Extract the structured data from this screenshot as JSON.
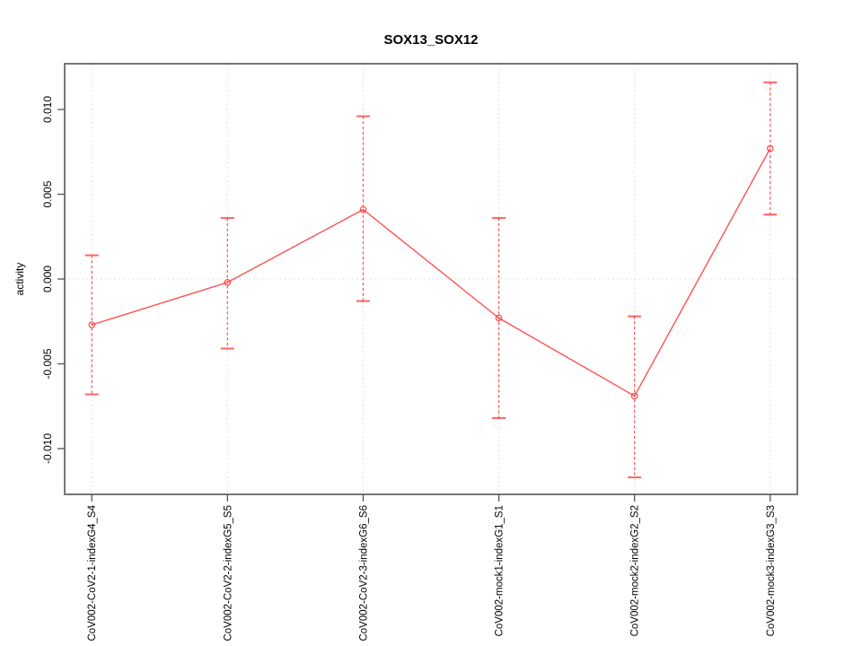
{
  "chart_data": {
    "type": "line",
    "title": "SOX13_SOX12",
    "ylabel": "activity",
    "xlabel": "",
    "legend": "none",
    "categories": [
      "CoV002-CoV2-1-indexG4_S4",
      "CoV002-CoV2-2-indexG5_S5",
      "CoV002-CoV2-3-indexG6_S6",
      "CoV002-mock1-indexG1_S1",
      "CoV002-mock2-indexG2_S2",
      "CoV002-mock3-indexG3_S3"
    ],
    "series": [
      {
        "name": "activity",
        "values": [
          -0.0027,
          -0.0002,
          0.0041,
          -0.0023,
          -0.0069,
          0.0077
        ],
        "error_high": [
          0.0014,
          0.0036,
          0.0096,
          0.0036,
          -0.0022,
          0.0116
        ],
        "error_low": [
          -0.0068,
          -0.0041,
          -0.0013,
          -0.0082,
          -0.0117,
          0.0038
        ]
      }
    ],
    "yticks": [
      -0.01,
      -0.005,
      0.0,
      0.005,
      0.01
    ],
    "ytick_labels": [
      "-0.010",
      "-0.005",
      "0.000",
      "0.005",
      "0.010"
    ],
    "ylim": [
      -0.0127,
      0.0127
    ],
    "grid": "dotted vertical line at each category, dotted horizontal line at y=0",
    "marker": "open-circle",
    "error_bar_style": "dashed line with solid caps",
    "colors": {
      "series": "#ff3232",
      "grid": "#d9d9d9",
      "axis": "#545454",
      "text": "#000000",
      "background": "#ffffff"
    }
  }
}
